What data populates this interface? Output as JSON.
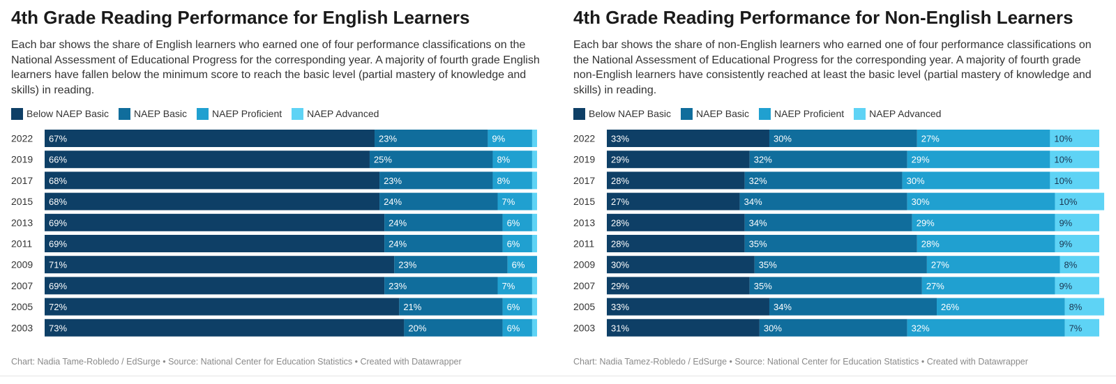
{
  "colors": {
    "below_basic": "#0e3f66",
    "basic": "#106d9c",
    "proficient": "#20a0d0",
    "advanced": "#5ed3f5"
  },
  "legend": [
    "Below NAEP Basic",
    "NAEP Basic",
    "NAEP Proficient",
    "NAEP Advanced"
  ],
  "left": {
    "title": "4th Grade Reading Performance for English Learners",
    "description": "Each bar shows the share of English learners who earned one of four performance classifications on the National Assessment of Educational Progress for the corresponding year. A majority of fourth grade English learners have fallen below the minimum score to reach the basic level (partial mastery of knowledge and skills) in reading.",
    "footer": "Chart: Nadia Tame-Robledo / EdSurge • Source: National Center for Education Statistics • Created with Datawrapper"
  },
  "right": {
    "title": "4th Grade Reading Performance for Non-English Learners",
    "description": "Each bar shows the share of non-English learners who earned one of four performance classifications on the National Assessment of Educational Progress for the corresponding year. A majority of fourth grade non-English learners have consistently reached at least the basic level (partial mastery of knowledge and skills) in reading.",
    "footer": "Chart: Nadia Tamez-Robledo / EdSurge • Source: National Center for Education Statistics • Created with Datawrapper"
  },
  "chart_data": [
    {
      "type": "bar",
      "orientation": "horizontal-stacked",
      "title": "4th Grade Reading Performance for English Learners",
      "categories": [
        "2022",
        "2019",
        "2017",
        "2015",
        "2013",
        "2011",
        "2009",
        "2007",
        "2005",
        "2003"
      ],
      "xlim": [
        0,
        100
      ],
      "legend_placement": "top-left",
      "grid": false,
      "series": [
        {
          "name": "Below NAEP Basic",
          "values": [
            67,
            66,
            68,
            68,
            69,
            69,
            71,
            69,
            72,
            73
          ],
          "labels": [
            "67%",
            "66%",
            "68%",
            "68%",
            "69%",
            "69%",
            "71%",
            "69%",
            "72%",
            "73%"
          ]
        },
        {
          "name": "NAEP Basic",
          "values": [
            23,
            25,
            23,
            24,
            24,
            24,
            23,
            23,
            21,
            20
          ],
          "labels": [
            "23%",
            "25%",
            "23%",
            "24%",
            "24%",
            "24%",
            "23%",
            "23%",
            "21%",
            "20%"
          ]
        },
        {
          "name": "NAEP Proficient",
          "values": [
            9,
            8,
            8,
            7,
            6,
            6,
            6,
            7,
            6,
            6
          ],
          "labels": [
            "9%",
            "8%",
            "8%",
            "7%",
            "6%",
            "6%",
            "6%",
            "7%",
            "6%",
            "6%"
          ]
        },
        {
          "name": "NAEP Advanced",
          "values": [
            1,
            1,
            1,
            1,
            1,
            1,
            0,
            1,
            1,
            1
          ],
          "labels": [
            "",
            "",
            "",
            "",
            "",
            "",
            "",
            "",
            "",
            ""
          ]
        }
      ]
    },
    {
      "type": "bar",
      "orientation": "horizontal-stacked",
      "title": "4th Grade Reading Performance for Non-English Learners",
      "categories": [
        "2022",
        "2019",
        "2017",
        "2015",
        "2013",
        "2011",
        "2009",
        "2007",
        "2005",
        "2003"
      ],
      "xlim": [
        0,
        100
      ],
      "legend_placement": "top-left",
      "grid": false,
      "series": [
        {
          "name": "Below NAEP Basic",
          "values": [
            33,
            29,
            28,
            27,
            28,
            28,
            30,
            29,
            33,
            31
          ],
          "labels": [
            "33%",
            "29%",
            "28%",
            "27%",
            "28%",
            "28%",
            "30%",
            "29%",
            "33%",
            "31%"
          ]
        },
        {
          "name": "NAEP Basic",
          "values": [
            30,
            32,
            32,
            34,
            34,
            35,
            35,
            35,
            34,
            30
          ],
          "labels": [
            "30%",
            "32%",
            "32%",
            "34%",
            "34%",
            "35%",
            "35%",
            "35%",
            "34%",
            "30%"
          ]
        },
        {
          "name": "NAEP Proficient",
          "values": [
            27,
            29,
            30,
            30,
            29,
            28,
            27,
            27,
            26,
            32
          ],
          "labels": [
            "27%",
            "29%",
            "30%",
            "30%",
            "29%",
            "28%",
            "27%",
            "27%",
            "26%",
            "32%"
          ]
        },
        {
          "name": "NAEP Advanced",
          "values": [
            10,
            10,
            10,
            10,
            9,
            9,
            8,
            9,
            8,
            7
          ],
          "labels": [
            "10%",
            "10%",
            "10%",
            "10%",
            "9%",
            "9%",
            "8%",
            "9%",
            "8%",
            "7%"
          ]
        }
      ]
    }
  ]
}
